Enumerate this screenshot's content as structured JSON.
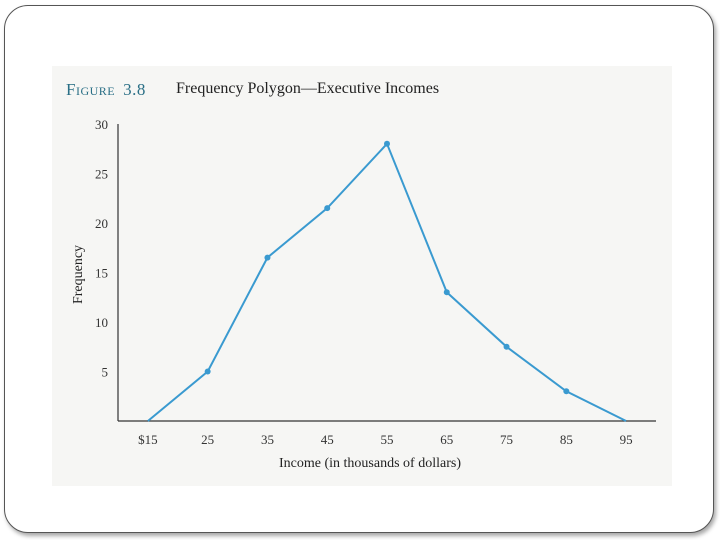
{
  "figure": {
    "label": "Figure",
    "number": "3.8",
    "title": "Frequency Polygon—Executive Incomes"
  },
  "colors": {
    "line": "#3a9ad0",
    "axis": "#333333",
    "label": "#2a6f86"
  },
  "chart_data": {
    "type": "line",
    "title": "Frequency Polygon—Executive Incomes",
    "xlabel": "Income (in thousands of dollars)",
    "ylabel": "Frequency",
    "x": [
      15,
      25,
      35,
      45,
      55,
      65,
      75,
      85,
      95
    ],
    "x_tick_labels": [
      "$15",
      "25",
      "35",
      "45",
      "55",
      "65",
      "75",
      "85",
      "95"
    ],
    "y": [
      0,
      5,
      16.5,
      21.5,
      28,
      13,
      7.5,
      3,
      0
    ],
    "xlim": [
      10,
      100
    ],
    "ylim": [
      0,
      30
    ],
    "y_ticks": [
      5,
      10,
      15,
      20,
      25,
      30
    ],
    "y_tick_labels": [
      "5",
      "10",
      "15",
      "20",
      "25",
      "30"
    ],
    "grid": false,
    "markers": true
  }
}
